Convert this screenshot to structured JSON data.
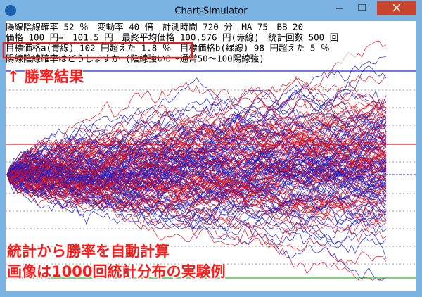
{
  "window": {
    "title": "Chart-Simulator"
  },
  "info_lines": [
    "陽線陰線確率 52 ％　変動率 40 倍　計測時間 720 分　MA 75　BB 20",
    "価格 100 円→　101.5 円　最終平均価格 100.576 円(赤線)　統計回数 500 回",
    "目標価格a(青線) 102 円超えた 1.8 ％　目標価格b(緑線) 98 円超えた 5 ％",
    "陽線陰線確率はどうしますか (陰線強い0～通常50～100陽線強)"
  ],
  "annotations": {
    "win_rate": "↑ 勝率結果",
    "caption": [
      "統計から勝率を自動計算",
      "画像は1000回統計分布の実験例"
    ]
  }
}
